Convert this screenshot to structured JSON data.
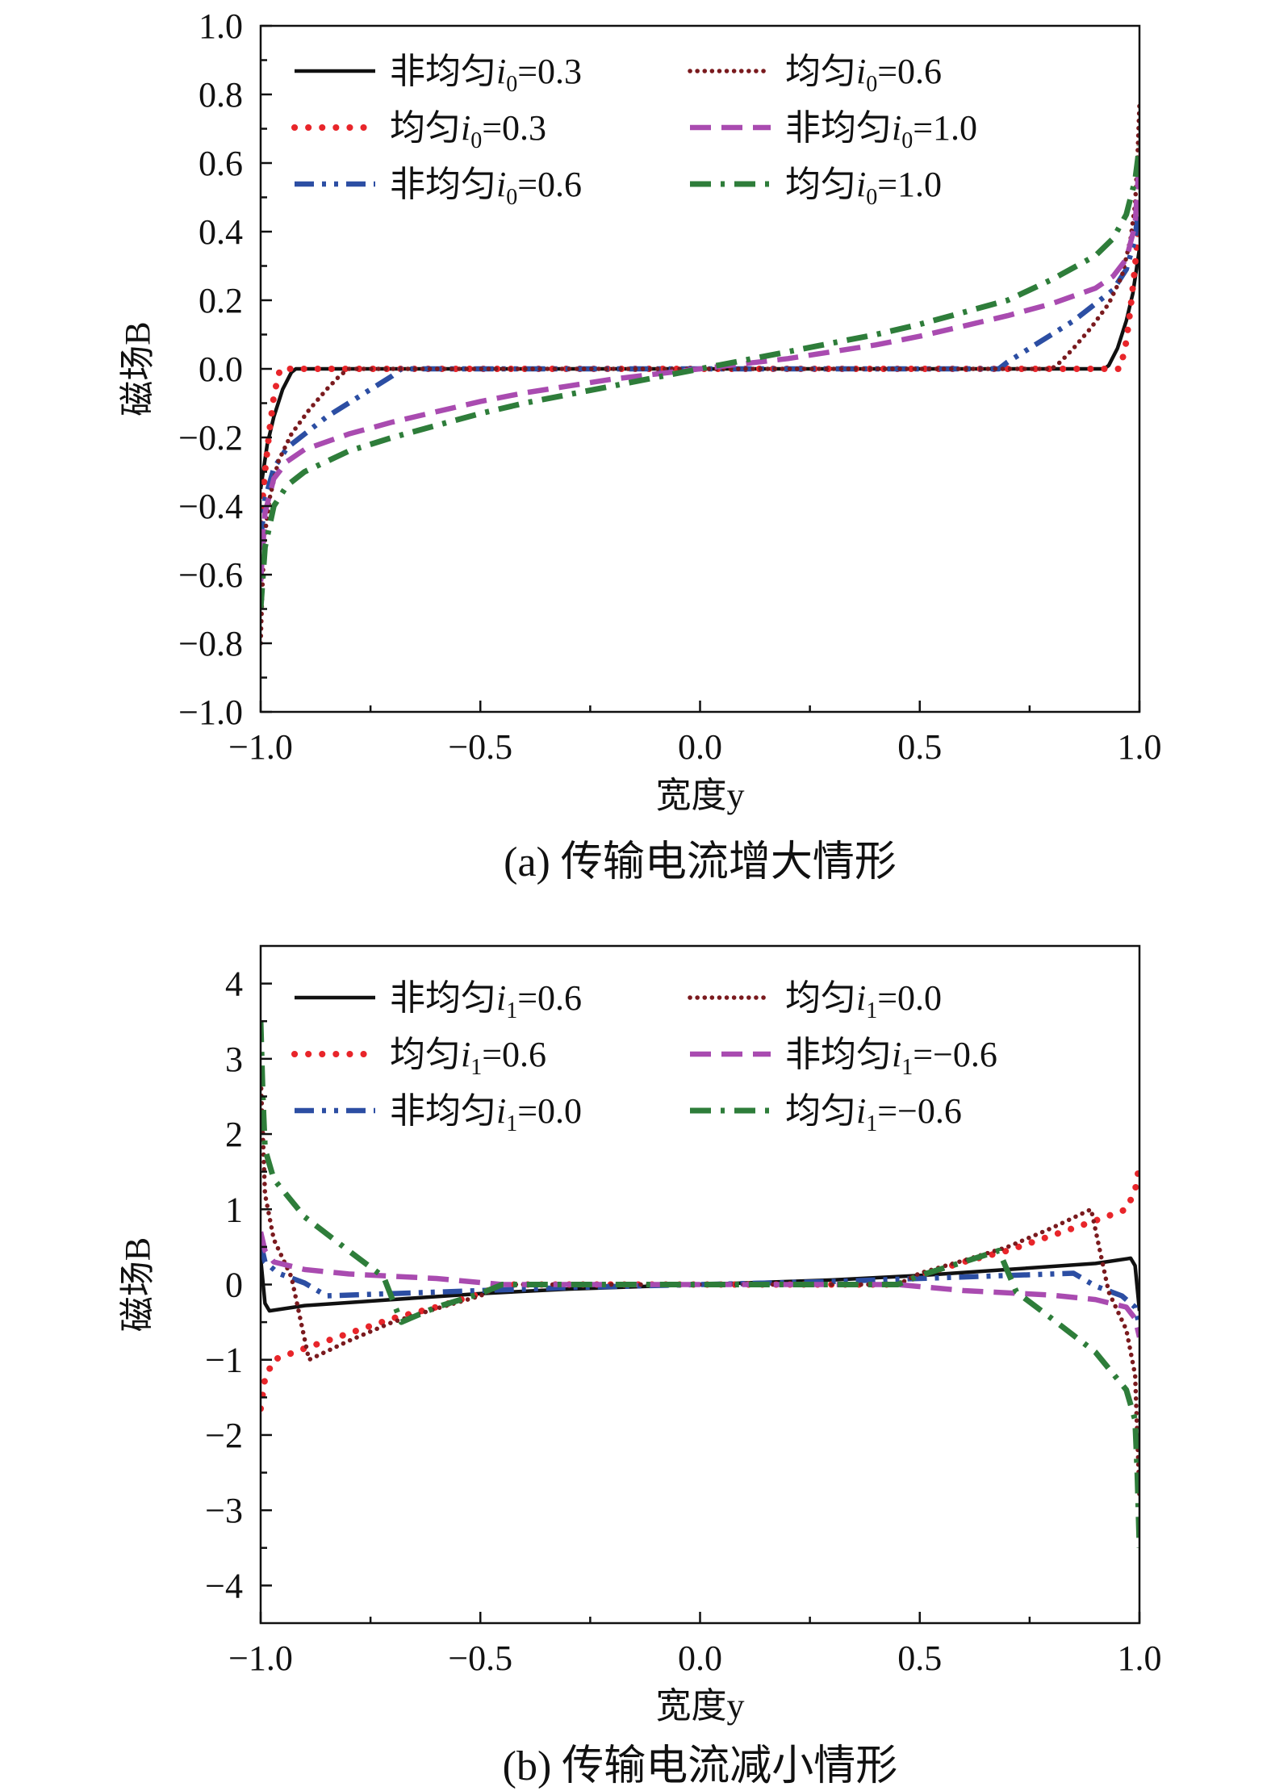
{
  "chart_data": [
    {
      "type": "line",
      "caption": "(a) 传输电流增大情形",
      "xlabel": "宽度y",
      "ylabel": "磁场B",
      "xlim": [
        -1.0,
        1.0
      ],
      "ylim": [
        -1.0,
        1.0
      ],
      "xticks": [
        -1.0,
        -0.5,
        0.0,
        0.5,
        1.0
      ],
      "xtick_labels": [
        "−1.0",
        "−0.5",
        "0.0",
        "0.5",
        "1.0"
      ],
      "yticks": [
        -1.0,
        -0.8,
        -0.6,
        -0.4,
        -0.2,
        0.0,
        0.2,
        0.4,
        0.6,
        0.8,
        1.0
      ],
      "ytick_labels": [
        "−1.0",
        "−0.8",
        "−0.6",
        "−0.4",
        "−0.2",
        "0.0",
        "0.2",
        "0.4",
        "0.6",
        "0.8",
        "1.0"
      ],
      "legend": "top, two columns",
      "series": [
        {
          "name": "非均匀i0=0.3",
          "legend_main": "非均匀i",
          "legend_sub": "0",
          "legend_val": "=0.3",
          "color": "#111111",
          "dash": "solid",
          "points": [
            [
              -1.0,
              -0.35
            ],
            [
              -0.985,
              -0.22
            ],
            [
              -0.97,
              -0.14
            ],
            [
              -0.95,
              -0.06
            ],
            [
              -0.93,
              -0.01
            ],
            [
              -0.92,
              0.0
            ],
            [
              0.92,
              0.0
            ],
            [
              0.93,
              0.01
            ],
            [
              0.95,
              0.06
            ],
            [
              0.97,
              0.14
            ],
            [
              0.985,
              0.22
            ],
            [
              1.0,
              0.35
            ]
          ]
        },
        {
          "name": "均匀i0=0.3",
          "legend_main": "均匀i",
          "legend_sub": "0",
          "legend_val": "=0.3",
          "color": "#e8252a",
          "dash": "dot-coarse",
          "points": [
            [
              -1.0,
              -0.45
            ],
            [
              -0.99,
              -0.3
            ],
            [
              -0.98,
              -0.18
            ],
            [
              -0.97,
              -0.08
            ],
            [
              -0.96,
              -0.02
            ],
            [
              -0.955,
              0.0
            ],
            [
              0.955,
              0.0
            ],
            [
              0.96,
              0.02
            ],
            [
              0.97,
              0.08
            ],
            [
              0.98,
              0.18
            ],
            [
              0.99,
              0.3
            ],
            [
              1.0,
              0.45
            ]
          ]
        },
        {
          "name": "非均匀i0=0.6",
          "legend_main": "非均匀i",
          "legend_sub": "0",
          "legend_val": "=0.6",
          "color": "#2c4ea3",
          "dash": "dashdotdot",
          "points": [
            [
              -1.0,
              -0.5
            ],
            [
              -0.99,
              -0.38
            ],
            [
              -0.97,
              -0.29
            ],
            [
              -0.94,
              -0.23
            ],
            [
              -0.9,
              -0.19
            ],
            [
              -0.85,
              -0.14
            ],
            [
              -0.8,
              -0.1
            ],
            [
              -0.75,
              -0.06
            ],
            [
              -0.7,
              -0.02
            ],
            [
              -0.68,
              0.0
            ],
            [
              0.68,
              0.0
            ],
            [
              0.7,
              0.02
            ],
            [
              0.75,
              0.06
            ],
            [
              0.8,
              0.1
            ],
            [
              0.85,
              0.14
            ],
            [
              0.9,
              0.19
            ],
            [
              0.94,
              0.23
            ],
            [
              0.97,
              0.29
            ],
            [
              0.99,
              0.38
            ],
            [
              1.0,
              0.5
            ]
          ]
        },
        {
          "name": "均匀i0=0.6",
          "legend_main": "均匀i",
          "legend_sub": "0",
          "legend_val": "=0.6",
          "color": "#7a1a1e",
          "dash": "dot-fine",
          "points": [
            [
              -1.0,
              -0.8
            ],
            [
              -0.995,
              -0.6
            ],
            [
              -0.99,
              -0.48
            ],
            [
              -0.98,
              -0.38
            ],
            [
              -0.96,
              -0.27
            ],
            [
              -0.93,
              -0.19
            ],
            [
              -0.89,
              -0.12
            ],
            [
              -0.85,
              -0.06
            ],
            [
              -0.82,
              -0.02
            ],
            [
              -0.8,
              0.0
            ],
            [
              0.8,
              0.0
            ],
            [
              0.82,
              0.02
            ],
            [
              0.85,
              0.06
            ],
            [
              0.89,
              0.12
            ],
            [
              0.93,
              0.19
            ],
            [
              0.96,
              0.27
            ],
            [
              0.98,
              0.38
            ],
            [
              0.99,
              0.48
            ],
            [
              0.995,
              0.6
            ],
            [
              1.0,
              0.77
            ]
          ]
        },
        {
          "name": "非均匀i0=1.0",
          "legend_main": "非均匀i",
          "legend_sub": "0",
          "legend_val": "=1.0",
          "color": "#a94bb0",
          "dash": "dash",
          "points": [
            [
              -1.0,
              -0.62
            ],
            [
              -0.99,
              -0.42
            ],
            [
              -0.97,
              -0.32
            ],
            [
              -0.94,
              -0.27
            ],
            [
              -0.9,
              -0.235
            ],
            [
              -0.8,
              -0.19
            ],
            [
              -0.7,
              -0.155
            ],
            [
              -0.6,
              -0.125
            ],
            [
              -0.5,
              -0.095
            ],
            [
              -0.4,
              -0.07
            ],
            [
              -0.3,
              -0.05
            ],
            [
              -0.2,
              -0.03
            ],
            [
              -0.1,
              -0.015
            ],
            [
              0.0,
              0.0
            ],
            [
              0.1,
              0.015
            ],
            [
              0.2,
              0.03
            ],
            [
              0.3,
              0.05
            ],
            [
              0.4,
              0.07
            ],
            [
              0.5,
              0.095
            ],
            [
              0.6,
              0.125
            ],
            [
              0.7,
              0.155
            ],
            [
              0.8,
              0.19
            ],
            [
              0.9,
              0.235
            ],
            [
              0.94,
              0.27
            ],
            [
              0.97,
              0.32
            ],
            [
              0.99,
              0.42
            ],
            [
              1.0,
              0.62
            ]
          ]
        },
        {
          "name": "均匀i0=1.0",
          "legend_main": "均匀i",
          "legend_sub": "0",
          "legend_val": "=1.0",
          "color": "#2e7d3a",
          "dash": "dashdot",
          "points": [
            [
              -1.0,
              -0.7
            ],
            [
              -0.99,
              -0.52
            ],
            [
              -0.97,
              -0.4
            ],
            [
              -0.94,
              -0.34
            ],
            [
              -0.9,
              -0.3
            ],
            [
              -0.8,
              -0.24
            ],
            [
              -0.7,
              -0.2
            ],
            [
              -0.6,
              -0.165
            ],
            [
              -0.5,
              -0.13
            ],
            [
              -0.4,
              -0.1
            ],
            [
              -0.3,
              -0.075
            ],
            [
              -0.2,
              -0.05
            ],
            [
              -0.1,
              -0.025
            ],
            [
              0.0,
              0.0
            ],
            [
              0.1,
              0.025
            ],
            [
              0.2,
              0.05
            ],
            [
              0.3,
              0.075
            ],
            [
              0.4,
              0.1
            ],
            [
              0.5,
              0.13
            ],
            [
              0.6,
              0.165
            ],
            [
              0.7,
              0.2
            ],
            [
              0.8,
              0.26
            ],
            [
              0.9,
              0.33
            ],
            [
              0.94,
              0.38
            ],
            [
              0.97,
              0.45
            ],
            [
              0.99,
              0.55
            ],
            [
              1.0,
              0.65
            ]
          ]
        }
      ]
    },
    {
      "type": "line",
      "caption": "(b) 传输电流减小情形",
      "xlabel": "宽度y",
      "ylabel": "磁场B",
      "xlim": [
        -1.0,
        1.0
      ],
      "ylim": [
        -4.5,
        4.5
      ],
      "xticks": [
        -1.0,
        -0.5,
        0.0,
        0.5,
        1.0
      ],
      "xtick_labels": [
        "−1.0",
        "−0.5",
        "0.0",
        "0.5",
        "1.0"
      ],
      "yticks": [
        -4,
        -3,
        -2,
        -1,
        0,
        1,
        2,
        3,
        4
      ],
      "ytick_labels": [
        "−4",
        "−3",
        "−2",
        "−1",
        "0",
        "1",
        "2",
        "3",
        "4"
      ],
      "legend": "top, two columns",
      "series": [
        {
          "name": "非均匀i1=0.6",
          "legend_main": "非均匀i",
          "legend_sub": "1",
          "legend_val": "=0.6",
          "color": "#111111",
          "dash": "solid",
          "points": [
            [
              -1.0,
              0.35
            ],
            [
              -0.99,
              -0.25
            ],
            [
              -0.98,
              -0.35
            ],
            [
              -0.9,
              -0.28
            ],
            [
              -0.7,
              -0.2
            ],
            [
              -0.5,
              -0.12
            ],
            [
              -0.3,
              -0.06
            ],
            [
              -0.1,
              -0.02
            ],
            [
              0.0,
              0.0
            ],
            [
              0.1,
              0.02
            ],
            [
              0.3,
              0.06
            ],
            [
              0.5,
              0.12
            ],
            [
              0.7,
              0.2
            ],
            [
              0.9,
              0.28
            ],
            [
              0.98,
              0.35
            ],
            [
              0.99,
              0.25
            ],
            [
              1.0,
              -0.35
            ]
          ]
        },
        {
          "name": "均匀i1=0.6",
          "legend_main": "均匀i",
          "legend_sub": "1",
          "legend_val": "=0.6",
          "color": "#e8252a",
          "dash": "dot-coarse",
          "points": [
            [
              -1.0,
              -1.65
            ],
            [
              -0.99,
              -1.25
            ],
            [
              -0.97,
              -1.0
            ],
            [
              -0.9,
              -0.85
            ],
            [
              -0.8,
              -0.65
            ],
            [
              -0.7,
              -0.45
            ],
            [
              -0.6,
              -0.3
            ],
            [
              -0.5,
              -0.12
            ],
            [
              -0.45,
              0.0
            ],
            [
              0.45,
              0.0
            ],
            [
              0.5,
              0.12
            ],
            [
              0.6,
              0.3
            ],
            [
              0.7,
              0.45
            ],
            [
              0.8,
              0.65
            ],
            [
              0.9,
              0.85
            ],
            [
              0.97,
              1.0
            ],
            [
              0.99,
              1.25
            ],
            [
              1.0,
              1.6
            ]
          ]
        },
        {
          "name": "非均匀i1=0.0",
          "legend_main": "非均匀i",
          "legend_sub": "1",
          "legend_val": "=0.0",
          "color": "#2c4ea3",
          "dash": "dashdotdot",
          "points": [
            [
              -1.0,
              0.55
            ],
            [
              -0.99,
              0.3
            ],
            [
              -0.96,
              0.15
            ],
            [
              -0.9,
              0.02
            ],
            [
              -0.85,
              -0.15
            ],
            [
              -0.7,
              -0.12
            ],
            [
              -0.5,
              -0.08
            ],
            [
              -0.3,
              -0.04
            ],
            [
              0.0,
              0.0
            ],
            [
              0.3,
              0.04
            ],
            [
              0.5,
              0.08
            ],
            [
              0.7,
              0.12
            ],
            [
              0.85,
              0.15
            ],
            [
              0.9,
              -0.02
            ],
            [
              0.96,
              -0.15
            ],
            [
              0.99,
              -0.3
            ],
            [
              1.0,
              -0.55
            ]
          ]
        },
        {
          "name": "均匀i1=0.0",
          "legend_main": "均匀i",
          "legend_sub": "1",
          "legend_val": "=0.0",
          "color": "#7a1a1e",
          "dash": "dot-fine",
          "points": [
            [
              -1.0,
              2.8
            ],
            [
              -0.99,
              1.2
            ],
            [
              -0.97,
              0.6
            ],
            [
              -0.93,
              0.1
            ],
            [
              -0.89,
              -1.0
            ],
            [
              -0.8,
              -0.75
            ],
            [
              -0.7,
              -0.5
            ],
            [
              -0.6,
              -0.32
            ],
            [
              -0.5,
              -0.15
            ],
            [
              -0.45,
              0.0
            ],
            [
              0.45,
              0.0
            ],
            [
              0.5,
              0.15
            ],
            [
              0.6,
              0.32
            ],
            [
              0.7,
              0.5
            ],
            [
              0.8,
              0.75
            ],
            [
              0.89,
              1.0
            ],
            [
              0.93,
              -0.1
            ],
            [
              0.97,
              -0.6
            ],
            [
              0.99,
              -1.2
            ],
            [
              1.0,
              -2.8
            ]
          ]
        },
        {
          "name": "非均匀i1=−0.6",
          "legend_main": "非均匀i",
          "legend_sub": "1",
          "legend_val": "=−0.6",
          "color": "#a94bb0",
          "dash": "dash",
          "points": [
            [
              -1.0,
              0.7
            ],
            [
              -0.99,
              0.45
            ],
            [
              -0.97,
              0.3
            ],
            [
              -0.9,
              0.2
            ],
            [
              -0.8,
              0.14
            ],
            [
              -0.6,
              0.08
            ],
            [
              -0.45,
              0.0
            ],
            [
              0.45,
              0.0
            ],
            [
              0.6,
              -0.08
            ],
            [
              0.8,
              -0.14
            ],
            [
              0.9,
              -0.2
            ],
            [
              0.97,
              -0.3
            ],
            [
              0.99,
              -0.45
            ],
            [
              1.0,
              -0.7
            ]
          ]
        },
        {
          "name": "均匀i1=−0.6",
          "legend_main": "均匀i",
          "legend_sub": "1",
          "legend_val": "=−0.6",
          "color": "#2e7d3a",
          "dash": "dashdot",
          "points": [
            [
              -1.0,
              3.5
            ],
            [
              -0.995,
              2.5
            ],
            [
              -0.99,
              1.8
            ],
            [
              -0.97,
              1.4
            ],
            [
              -0.9,
              0.9
            ],
            [
              -0.8,
              0.45
            ],
            [
              -0.72,
              0.1
            ],
            [
              -0.68,
              -0.5
            ],
            [
              -0.6,
              -0.3
            ],
            [
              -0.5,
              -0.12
            ],
            [
              -0.45,
              0.0
            ],
            [
              0.45,
              0.0
            ],
            [
              0.5,
              0.12
            ],
            [
              0.6,
              0.3
            ],
            [
              0.68,
              0.45
            ],
            [
              0.72,
              -0.1
            ],
            [
              0.8,
              -0.45
            ],
            [
              0.9,
              -0.9
            ],
            [
              0.97,
              -1.4
            ],
            [
              0.99,
              -1.8
            ],
            [
              0.995,
              -2.5
            ],
            [
              1.0,
              -3.5
            ]
          ]
        }
      ]
    }
  ]
}
